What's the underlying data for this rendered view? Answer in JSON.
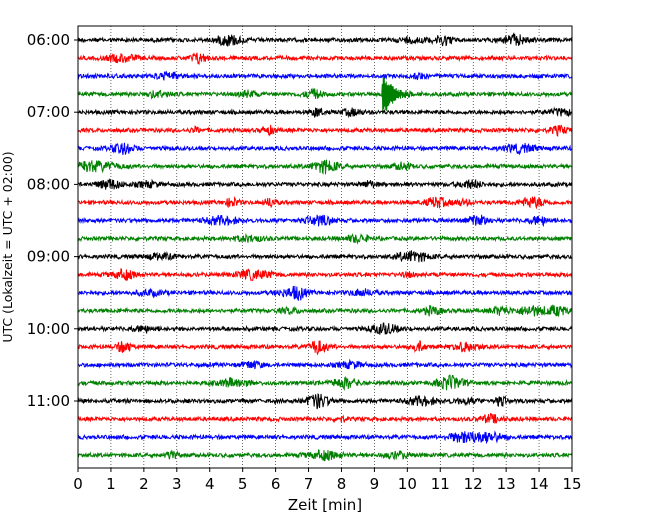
{
  "chart_data": {
    "type": "line",
    "title": "",
    "xlabel": "Zeit  [min]",
    "ylabel": "UTC (Lokalzeit = UTC + 02:00)",
    "xlim": [
      0,
      15
    ],
    "x_ticks": [
      "0",
      "1",
      "2",
      "3",
      "4",
      "5",
      "6",
      "7",
      "8",
      "9",
      "10",
      "11",
      "12",
      "13",
      "14",
      "15"
    ],
    "y_ticks": [
      "06:00",
      "07:00",
      "08:00",
      "09:00",
      "10:00",
      "11:00"
    ],
    "vertical_grid": "dotted",
    "traces_start": "06:00",
    "trace_interval_min": 15,
    "trace_colors": [
      "#000000",
      "#ff0000",
      "#0000ff",
      "#008000"
    ],
    "series": [
      {
        "start": "06:00",
        "color": "#000000"
      },
      {
        "start": "06:15",
        "color": "#ff0000"
      },
      {
        "start": "06:30",
        "color": "#0000ff"
      },
      {
        "start": "06:45",
        "color": "#008000"
      },
      {
        "start": "07:00",
        "color": "#000000"
      },
      {
        "start": "07:15",
        "color": "#ff0000"
      },
      {
        "start": "07:30",
        "color": "#0000ff"
      },
      {
        "start": "07:45",
        "color": "#008000"
      },
      {
        "start": "08:00",
        "color": "#000000"
      },
      {
        "start": "08:15",
        "color": "#ff0000"
      },
      {
        "start": "08:30",
        "color": "#0000ff"
      },
      {
        "start": "08:45",
        "color": "#008000"
      },
      {
        "start": "09:00",
        "color": "#000000"
      },
      {
        "start": "09:15",
        "color": "#ff0000"
      },
      {
        "start": "09:30",
        "color": "#0000ff"
      },
      {
        "start": "09:45",
        "color": "#008000"
      },
      {
        "start": "10:00",
        "color": "#000000"
      },
      {
        "start": "10:15",
        "color": "#ff0000"
      },
      {
        "start": "10:30",
        "color": "#0000ff"
      },
      {
        "start": "10:45",
        "color": "#008000"
      },
      {
        "start": "11:00",
        "color": "#000000"
      },
      {
        "start": "11:15",
        "color": "#ff0000"
      },
      {
        "start": "11:30",
        "color": "#0000ff"
      },
      {
        "start": "11:45",
        "color": "#008000"
      }
    ],
    "events": [
      {
        "trace_start": "06:45",
        "x_min": 9.25,
        "color": "#008000",
        "note": "large transient spike"
      }
    ]
  }
}
